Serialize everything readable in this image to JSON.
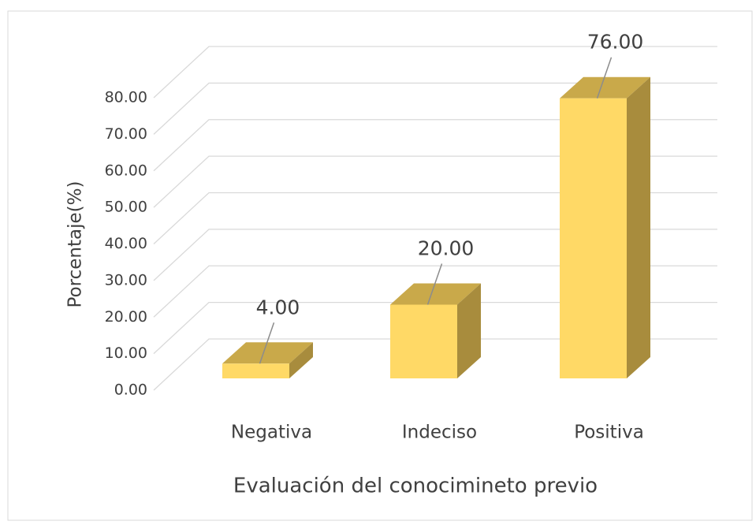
{
  "chart_data": {
    "type": "bar3d",
    "x_label": "Evaluación del conocimineto previo",
    "y_label": "Porcentaje(%)",
    "categories": [
      "Negativa",
      "Indeciso",
      "Positiva"
    ],
    "values": [
      4,
      20,
      76
    ],
    "value_labels": [
      "4.00",
      "20.00",
      "76.00"
    ],
    "color": "#ffd966",
    "ylim": [
      0,
      80
    ],
    "yticks": [
      {
        "value": 0,
        "label": "0.00"
      },
      {
        "value": 10,
        "label": "10.00"
      },
      {
        "value": 20,
        "label": "20.00"
      },
      {
        "value": 30,
        "label": "30.00"
      },
      {
        "value": 40,
        "label": "40.00"
      },
      {
        "value": 50,
        "label": "50.00"
      },
      {
        "value": 60,
        "label": "60.00"
      },
      {
        "value": 70,
        "label": "70.00"
      },
      {
        "value": 80,
        "label": "80.00"
      }
    ],
    "grid": true
  }
}
